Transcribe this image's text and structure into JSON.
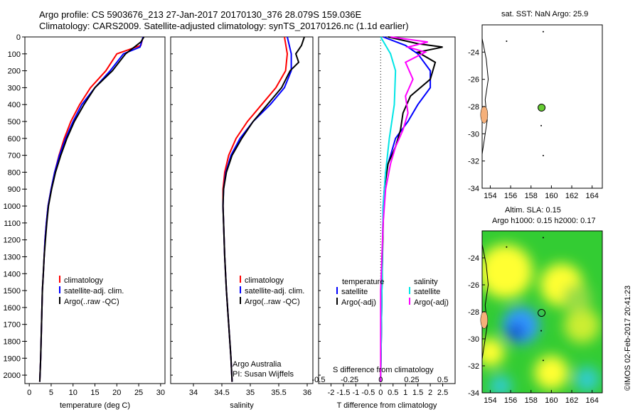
{
  "header": {
    "title_line1": "Argo profile: CS 5903676_213 27-Jan-2017 20170130_376 28.079S 159.036E",
    "title_line2": "Climatology: CARS2009. Satellite-adjusted climatology: synTS_20170126.nc (1.1d earlier)"
  },
  "colors": {
    "climatology": "#ff0000",
    "satellite": "#0000ff",
    "argo": "#000000",
    "sal_satellite": "#00e5e5",
    "sal_argo": "#ff00ff"
  },
  "chart_data": [
    {
      "type": "line",
      "id": "temperature",
      "xlabel": "temperature (deg C)",
      "xlim": [
        -1,
        31
      ],
      "ylim": [
        2050,
        0
      ],
      "xticks": [
        0,
        5,
        10,
        15,
        20,
        25,
        30
      ],
      "yticks": [
        0,
        100,
        200,
        300,
        400,
        500,
        600,
        700,
        800,
        900,
        1000,
        1100,
        1200,
        1300,
        1400,
        1500,
        1600,
        1700,
        1800,
        1900,
        2000
      ],
      "legend": [
        "climatology",
        "satellite-adj. clim.",
        "Argo(..raw -QC)"
      ],
      "series": [
        {
          "name": "climatology",
          "color": "#ff0000",
          "points": [
            [
              26,
              0
            ],
            [
              25.5,
              50
            ],
            [
              20,
              100
            ],
            [
              17.5,
              200
            ],
            [
              14,
              300
            ],
            [
              11.5,
              400
            ],
            [
              9.5,
              500
            ],
            [
              8,
              600
            ],
            [
              6.8,
              700
            ],
            [
              5.8,
              800
            ],
            [
              5,
              900
            ],
            [
              4.3,
              1000
            ],
            [
              3.9,
              1100
            ],
            [
              3.6,
              1200
            ],
            [
              3.4,
              1300
            ],
            [
              3.2,
              1400
            ],
            [
              3,
              1500
            ],
            [
              2.8,
              1700
            ],
            [
              2.6,
              1900
            ],
            [
              2.4,
              2040
            ]
          ]
        },
        {
          "name": "satellite-adj. clim.",
          "color": "#0000ff",
          "points": [
            [
              26,
              0
            ],
            [
              25.3,
              60
            ],
            [
              21.5,
              100
            ],
            [
              18.5,
              200
            ],
            [
              15,
              300
            ],
            [
              12,
              400
            ],
            [
              10,
              500
            ],
            [
              8.3,
              600
            ],
            [
              6.9,
              700
            ],
            [
              5.8,
              800
            ],
            [
              5,
              900
            ],
            [
              4.3,
              1000
            ],
            [
              3.9,
              1100
            ],
            [
              3.6,
              1200
            ],
            [
              3.4,
              1300
            ],
            [
              3.2,
              1400
            ],
            [
              3,
              1500
            ],
            [
              2.8,
              1700
            ],
            [
              2.6,
              1900
            ],
            [
              2.4,
              2040
            ]
          ]
        },
        {
          "name": "Argo(..raw -QC)",
          "color": "#000000",
          "points": [
            [
              26.2,
              0
            ],
            [
              25.5,
              30
            ],
            [
              24,
              60
            ],
            [
              22,
              100
            ],
            [
              19,
              200
            ],
            [
              15,
              300
            ],
            [
              12.5,
              400
            ],
            [
              10.3,
              500
            ],
            [
              8.6,
              600
            ],
            [
              7.2,
              700
            ],
            [
              6,
              800
            ],
            [
              5.1,
              900
            ],
            [
              4.4,
              1000
            ],
            [
              4,
              1100
            ],
            [
              3.7,
              1200
            ],
            [
              3.4,
              1300
            ],
            [
              3.2,
              1400
            ],
            [
              3,
              1500
            ],
            [
              2.8,
              1700
            ],
            [
              2.6,
              1900
            ],
            [
              2.4,
              2040
            ]
          ]
        }
      ]
    },
    {
      "type": "line",
      "id": "salinity",
      "xlabel": "salinity",
      "xlim": [
        33.6,
        36.1
      ],
      "ylim": [
        2050,
        0
      ],
      "xticks": [
        34,
        34.5,
        35,
        35.5,
        36
      ],
      "legend": [
        "climatology",
        "satellite-adj. clim.",
        "Argo(..raw -QC)"
      ],
      "annotation": [
        "Argo Australia",
        "PI: Susan Wijffels"
      ],
      "series": [
        {
          "name": "climatology",
          "color": "#ff0000",
          "points": [
            [
              35.6,
              0
            ],
            [
              35.65,
              100
            ],
            [
              35.62,
              200
            ],
            [
              35.45,
              300
            ],
            [
              35.2,
              400
            ],
            [
              34.95,
              500
            ],
            [
              34.75,
              600
            ],
            [
              34.62,
              700
            ],
            [
              34.55,
              800
            ],
            [
              34.52,
              900
            ],
            [
              34.52,
              1000
            ],
            [
              34.53,
              1100
            ],
            [
              34.55,
              1300
            ],
            [
              34.58,
              1500
            ],
            [
              34.62,
              1700
            ],
            [
              34.66,
              1900
            ],
            [
              34.68,
              2040
            ]
          ]
        },
        {
          "name": "satellite-adj. clim.",
          "color": "#0000ff",
          "points": [
            [
              35.65,
              0
            ],
            [
              35.72,
              100
            ],
            [
              35.72,
              200
            ],
            [
              35.6,
              300
            ],
            [
              35.35,
              400
            ],
            [
              35.05,
              500
            ],
            [
              34.82,
              600
            ],
            [
              34.66,
              700
            ],
            [
              34.57,
              800
            ],
            [
              34.53,
              900
            ],
            [
              34.52,
              1000
            ],
            [
              34.53,
              1100
            ],
            [
              34.55,
              1300
            ],
            [
              34.58,
              1500
            ],
            [
              34.62,
              1700
            ],
            [
              34.66,
              1900
            ],
            [
              34.68,
              2040
            ]
          ]
        },
        {
          "name": "Argo(..raw -QC)",
          "color": "#000000",
          "points": [
            [
              35.95,
              0
            ],
            [
              35.9,
              50
            ],
            [
              35.8,
              100
            ],
            [
              35.85,
              150
            ],
            [
              35.7,
              200
            ],
            [
              35.55,
              300
            ],
            [
              35.3,
              400
            ],
            [
              35.05,
              500
            ],
            [
              34.85,
              600
            ],
            [
              34.68,
              700
            ],
            [
              34.58,
              800
            ],
            [
              34.53,
              900
            ],
            [
              34.52,
              1000
            ],
            [
              34.53,
              1100
            ],
            [
              34.55,
              1300
            ],
            [
              34.58,
              1500
            ],
            [
              34.62,
              1700
            ],
            [
              34.66,
              1900
            ],
            [
              34.68,
              2040
            ]
          ]
        }
      ]
    },
    {
      "type": "line",
      "id": "difference",
      "xlabel": "T difference from climatology",
      "x2label": "S difference from climatology",
      "xlim": [
        -2.5,
        3
      ],
      "ylim": [
        2050,
        0
      ],
      "xticks": [
        -2,
        -1.5,
        -1,
        -0.5,
        0,
        0.5,
        1,
        1.5,
        2,
        2.5
      ],
      "xticklabels": [
        "-2",
        "-1.5",
        "-1",
        "-0.5",
        "0",
        "0.5",
        "1",
        "1.5",
        "2",
        "2.5"
      ],
      "x2ticks": [
        -0.5,
        -0.25,
        0,
        0.25,
        0.5
      ],
      "x2ticklabels": [
        "-0.5",
        "-0.25",
        "0",
        "0.25",
        "0.5"
      ],
      "legend_temperature": {
        "title": "temperature",
        "items": [
          "satellite",
          "Argo(-adj)"
        ]
      },
      "legend_salinity": {
        "title": "salinity",
        "items": [
          "satellite",
          "Argo(-adj)"
        ]
      },
      "series": [
        {
          "name": "satellite",
          "color": "#0000ff",
          "points": [
            [
              0.1,
              0
            ],
            [
              1,
              50
            ],
            [
              1.5,
              100
            ],
            [
              2,
              200
            ],
            [
              2,
              300
            ],
            [
              1.5,
              400
            ],
            [
              1.1,
              500
            ],
            [
              0.6,
              600
            ],
            [
              0.4,
              700
            ],
            [
              0.2,
              800
            ],
            [
              0.1,
              1000
            ],
            [
              0.05,
              1500
            ],
            [
              0,
              2040
            ]
          ]
        },
        {
          "name": "Argo(-adj)",
          "color": "#000000",
          "points": [
            [
              0.3,
              0
            ],
            [
              1.5,
              40
            ],
            [
              2.5,
              60
            ],
            [
              1.5,
              90
            ],
            [
              2.2,
              150
            ],
            [
              2,
              250
            ],
            [
              1.2,
              350
            ],
            [
              0.9,
              450
            ],
            [
              0.8,
              550
            ],
            [
              0.6,
              650
            ],
            [
              0.3,
              750
            ],
            [
              0.15,
              900
            ],
            [
              0.1,
              1100
            ],
            [
              0.05,
              1500
            ],
            [
              0,
              2040
            ]
          ]
        },
        {
          "name": "satellite",
          "color": "#00e5e5",
          "points": [
            [
              0,
              0
            ],
            [
              0.4,
              100
            ],
            [
              0.6,
              200
            ],
            [
              0.55,
              400
            ],
            [
              0.35,
              600
            ],
            [
              0.2,
              800
            ],
            [
              0.1,
              1000
            ],
            [
              0.05,
              1500
            ],
            [
              0,
              2040
            ]
          ]
        },
        {
          "name": "Argo(-adj)",
          "color": "#ff00ff",
          "points": [
            [
              0.4,
              0
            ],
            [
              1.9,
              30
            ],
            [
              1.1,
              60
            ],
            [
              1.8,
              90
            ],
            [
              1,
              150
            ],
            [
              1.3,
              250
            ],
            [
              1,
              350
            ],
            [
              1.1,
              450
            ],
            [
              0.9,
              550
            ],
            [
              0.6,
              650
            ],
            [
              0.4,
              750
            ],
            [
              0.2,
              900
            ],
            [
              0.1,
              1100
            ],
            [
              0,
              1500
            ],
            [
              0,
              2040
            ]
          ]
        }
      ]
    }
  ],
  "map_top": {
    "title": "sat. SST: NaN Argo: 25.9",
    "xticks": [
      154,
      156,
      158,
      160,
      162,
      164
    ],
    "yticks": [
      -24,
      -26,
      -28,
      -30,
      -32,
      -34
    ],
    "xlim": [
      153.2,
      165
    ],
    "ylim": [
      -34,
      -22
    ],
    "float_lon": 159.036,
    "float_lat": -28.079,
    "float_color": "#66cc33"
  },
  "map_bottom": {
    "title": "Altim. SLA: 0.15",
    "subtitle": "Argo h1000: 0.15 h2000: 0.17",
    "xticks": [
      154,
      156,
      158,
      160,
      162,
      164
    ],
    "yticks": [
      -24,
      -26,
      -28,
      -30,
      -32,
      -34
    ],
    "xlim": [
      153.2,
      165
    ],
    "ylim": [
      -34,
      -22
    ],
    "float_lon": 159.036,
    "float_lat": -28.079
  },
  "side_label": "©IMOS 02-Feb-2017 20:41:23"
}
